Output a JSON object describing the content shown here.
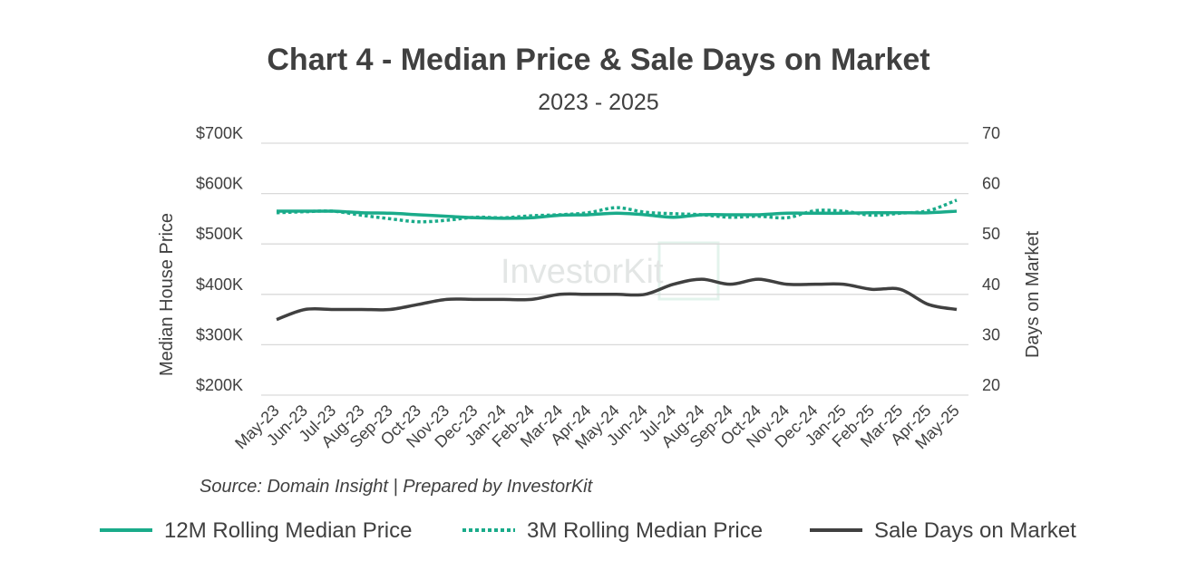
{
  "chart_data": {
    "type": "line",
    "title": "Chart 4 - Median Price & Sale Days on Market",
    "subtitle": "2023 - 2025",
    "source": "Source: Domain Insight | Prepared by InvestorKit",
    "watermark": "InvestorKit",
    "y_left": {
      "label": "Median House Price",
      "ylim": [
        200000,
        700000
      ],
      "ticks": [
        700000,
        600000,
        500000,
        400000,
        300000,
        200000
      ],
      "tick_labels": [
        "$700K",
        "$600K",
        "$500K",
        "$400K",
        "$300K",
        "$200K"
      ]
    },
    "y_right": {
      "label": "Days on Market",
      "ylim": [
        20,
        70
      ],
      "ticks": [
        70,
        60,
        50,
        40,
        30,
        20
      ],
      "tick_labels": [
        "70",
        "60",
        "50",
        "40",
        "30",
        "20"
      ]
    },
    "categories": [
      "May-23",
      "Jun-23",
      "Jul-23",
      "Aug-23",
      "Sep-23",
      "Oct-23",
      "Nov-23",
      "Dec-23",
      "Jan-24",
      "Feb-24",
      "Mar-24",
      "Apr-24",
      "May-24",
      "Jun-24",
      "Jul-24",
      "Aug-24",
      "Sep-24",
      "Oct-24",
      "Nov-24",
      "Dec-24",
      "Jan-25",
      "Feb-25",
      "Mar-25",
      "Apr-25",
      "May-25"
    ],
    "series": [
      {
        "name": "12M Rolling Median Price",
        "axis": "left",
        "color": "#1aab8a",
        "style": "solid",
        "values": [
          565000,
          565000,
          565000,
          562000,
          561000,
          558000,
          555000,
          552000,
          551000,
          552000,
          557000,
          558000,
          561000,
          558000,
          553000,
          558000,
          558000,
          558000,
          561000,
          561000,
          561000,
          562000,
          562000,
          562000,
          565000
        ]
      },
      {
        "name": "3M Rolling Median Price",
        "axis": "left",
        "color": "#1aab8a",
        "style": "dotted",
        "values": [
          562000,
          564000,
          565000,
          557000,
          550000,
          544000,
          547000,
          553000,
          552000,
          556000,
          558000,
          562000,
          572000,
          563000,
          560000,
          558000,
          553000,
          555000,
          552000,
          566000,
          565000,
          557000,
          561000,
          566000,
          587000
        ]
      },
      {
        "name": "Sale Days on Market",
        "axis": "right",
        "color": "#404040",
        "style": "solid",
        "values": [
          35,
          37,
          37,
          37,
          37,
          38,
          39,
          39,
          39,
          39,
          40,
          40,
          40,
          40,
          42,
          43,
          42,
          43,
          42,
          42,
          42,
          41,
          41,
          38,
          37
        ]
      }
    ],
    "legend_position": "bottom",
    "grid": true
  }
}
